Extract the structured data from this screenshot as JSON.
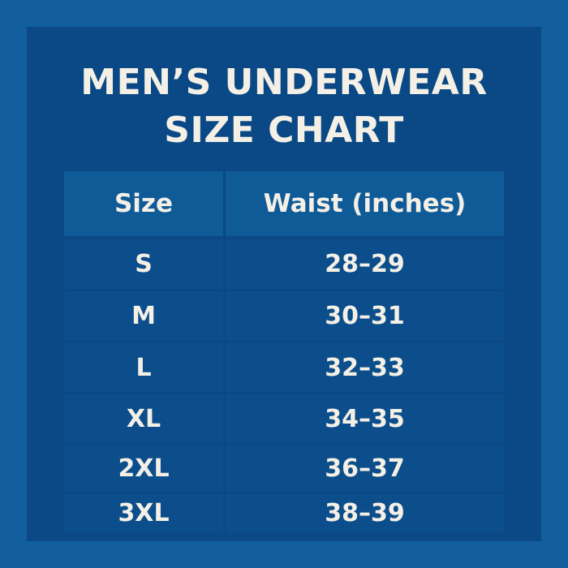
{
  "title_lines": [
    "MEN’S UNDERWEAR",
    "SIZE CHART"
  ],
  "table": {
    "headers": [
      "Size",
      "Waist (inches)"
    ],
    "rows": [
      {
        "size": "S",
        "waist": "28–29"
      },
      {
        "size": "M",
        "waist": "30–31"
      },
      {
        "size": "L",
        "waist": "32–33"
      },
      {
        "size": "XL",
        "waist": "34–35"
      },
      {
        "size": "2XL",
        "waist": "36–37"
      },
      {
        "size": "3XL",
        "waist": "38–39"
      }
    ]
  },
  "colors": {
    "background": "#135f9e",
    "panel": "#0a4985",
    "header": "#0f5b98",
    "row": "#0c4e8b",
    "text": "#f4f0e6"
  }
}
